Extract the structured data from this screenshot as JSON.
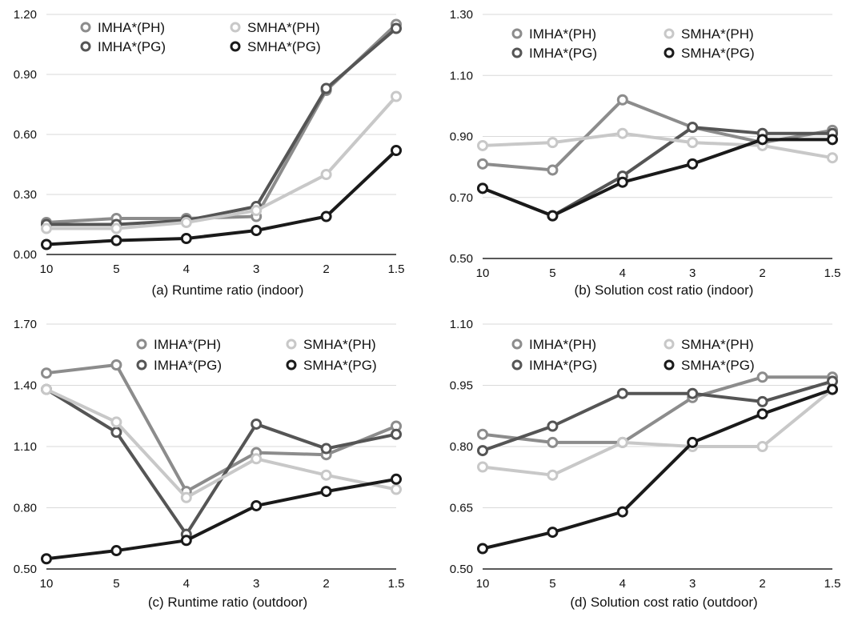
{
  "chart_data": [
    {
      "type": "line",
      "caption": "(a)  Runtime ratio (indoor)",
      "categories": [
        "10",
        "5",
        "4",
        "3",
        "2",
        "1.5"
      ],
      "ylim": [
        0,
        1.2
      ],
      "yticks": [
        "0.00",
        "0.30",
        "0.60",
        "0.90",
        "1.20"
      ],
      "ytick_values": [
        0,
        0.3,
        0.6,
        0.9,
        1.2
      ],
      "grid": true,
      "legend_position": "top",
      "series": [
        {
          "name": "IMHA*(PH)",
          "color": "#8c8c8c",
          "values": [
            0.16,
            0.18,
            0.18,
            0.19,
            0.82,
            1.15
          ]
        },
        {
          "name": "IMHA*(PG)",
          "color": "#555555",
          "values": [
            0.15,
            0.15,
            0.17,
            0.24,
            0.83,
            1.13
          ]
        },
        {
          "name": "SMHA*(PH)",
          "color": "#c8c8c8",
          "values": [
            0.13,
            0.13,
            0.16,
            0.22,
            0.4,
            0.79
          ]
        },
        {
          "name": "SMHA*(PG)",
          "color": "#1a1a1a",
          "values": [
            0.05,
            0.07,
            0.08,
            0.12,
            0.19,
            0.52
          ]
        }
      ]
    },
    {
      "type": "line",
      "caption": "(b)  Solution cost ratio (indoor)",
      "categories": [
        "10",
        "5",
        "4",
        "3",
        "2",
        "1.5"
      ],
      "ylim": [
        0.5,
        1.3
      ],
      "yticks": [
        "0.50",
        "0.70",
        "0.90",
        "1.10",
        "1.30"
      ],
      "ytick_values": [
        0.5,
        0.7,
        0.9,
        1.1,
        1.3
      ],
      "grid": true,
      "legend_position": "top",
      "series": [
        {
          "name": "IMHA*(PH)",
          "color": "#8c8c8c",
          "values": [
            0.81,
            0.79,
            1.02,
            0.93,
            0.88,
            0.92
          ]
        },
        {
          "name": "IMHA*(PG)",
          "color": "#555555",
          "values": [
            0.73,
            0.64,
            0.77,
            0.93,
            0.91,
            0.91
          ]
        },
        {
          "name": "SMHA*(PH)",
          "color": "#c8c8c8",
          "values": [
            0.87,
            0.88,
            0.91,
            0.88,
            0.87,
            0.83
          ]
        },
        {
          "name": "SMHA*(PG)",
          "color": "#1a1a1a",
          "values": [
            0.73,
            0.64,
            0.75,
            0.81,
            0.89,
            0.89
          ]
        }
      ]
    },
    {
      "type": "line",
      "caption": "(c)  Runtime ratio (outdoor)",
      "categories": [
        "10",
        "5",
        "4",
        "3",
        "2",
        "1.5"
      ],
      "ylim": [
        0.5,
        1.7
      ],
      "yticks": [
        "0.50",
        "0.80",
        "1.10",
        "1.40",
        "1.70"
      ],
      "ytick_values": [
        0.5,
        0.8,
        1.1,
        1.4,
        1.7
      ],
      "grid": true,
      "legend_position": "top-right",
      "series": [
        {
          "name": "IMHA*(PH)",
          "color": "#8c8c8c",
          "values": [
            1.46,
            1.5,
            0.88,
            1.07,
            1.06,
            1.2
          ]
        },
        {
          "name": "IMHA*(PG)",
          "color": "#555555",
          "values": [
            1.38,
            1.17,
            0.67,
            1.21,
            1.09,
            1.16
          ]
        },
        {
          "name": "SMHA*(PH)",
          "color": "#c8c8c8",
          "values": [
            1.38,
            1.22,
            0.85,
            1.04,
            0.96,
            0.89
          ]
        },
        {
          "name": "SMHA*(PG)",
          "color": "#1a1a1a",
          "values": [
            0.55,
            0.59,
            0.64,
            0.81,
            0.88,
            0.94
          ]
        }
      ]
    },
    {
      "type": "line",
      "caption": "(d)  Solution cost ratio (outdoor)",
      "categories": [
        "10",
        "5",
        "4",
        "3",
        "2",
        "1.5"
      ],
      "ylim": [
        0.5,
        1.1
      ],
      "yticks": [
        "0.50",
        "0.65",
        "0.80",
        "0.95",
        "1.10"
      ],
      "ytick_values": [
        0.5,
        0.65,
        0.8,
        0.95,
        1.1
      ],
      "grid": true,
      "legend_position": "top",
      "series": [
        {
          "name": "IMHA*(PH)",
          "color": "#8c8c8c",
          "values": [
            0.83,
            0.81,
            0.81,
            0.92,
            0.97,
            0.97
          ]
        },
        {
          "name": "IMHA*(PG)",
          "color": "#555555",
          "values": [
            0.79,
            0.85,
            0.93,
            0.93,
            0.91,
            0.96
          ]
        },
        {
          "name": "SMHA*(PH)",
          "color": "#c8c8c8",
          "values": [
            0.75,
            0.73,
            0.81,
            0.8,
            0.8,
            0.94
          ]
        },
        {
          "name": "SMHA*(PG)",
          "color": "#1a1a1a",
          "values": [
            0.55,
            0.59,
            0.64,
            0.81,
            0.88,
            0.94
          ]
        }
      ]
    }
  ]
}
